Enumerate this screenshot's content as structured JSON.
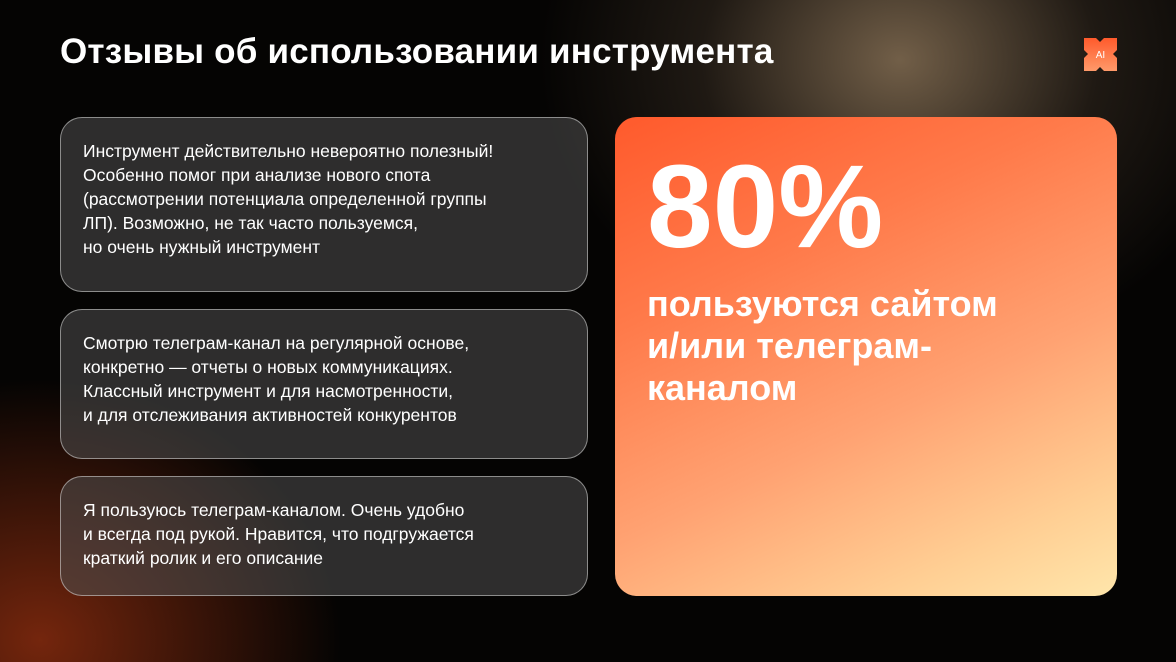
{
  "title": "Отзывы об использовании инструмента",
  "logo": {
    "text": "AI",
    "color": "#ff5a2c"
  },
  "reviews": [
    {
      "lines": [
        "Инструмент действительно невероятно полезный!",
        "Особенно помог при анализе нового спота",
        "(рассмотрении потенциала определенной группы",
        "ЛП). Возможно, не так часто пользуемся,",
        "но очень нужный инструмент"
      ]
    },
    {
      "lines": [
        "Смотрю телеграм-канал на регулярной основе,",
        "конкретно — отчеты о новых коммуникациях.",
        "Классный инструмент и для насмотренности,",
        "и для отслеживания активностей конкурентов"
      ]
    },
    {
      "lines": [
        "Я пользуюсь телеграм-каналом. Очень удобно",
        "и всегда под рукой. Нравится, что подгружается",
        "краткий ролик и его описание"
      ]
    }
  ],
  "stat": {
    "value": "80%",
    "lines": [
      "пользуются сайтом",
      "и/или телеграм-",
      "каналом"
    ]
  }
}
